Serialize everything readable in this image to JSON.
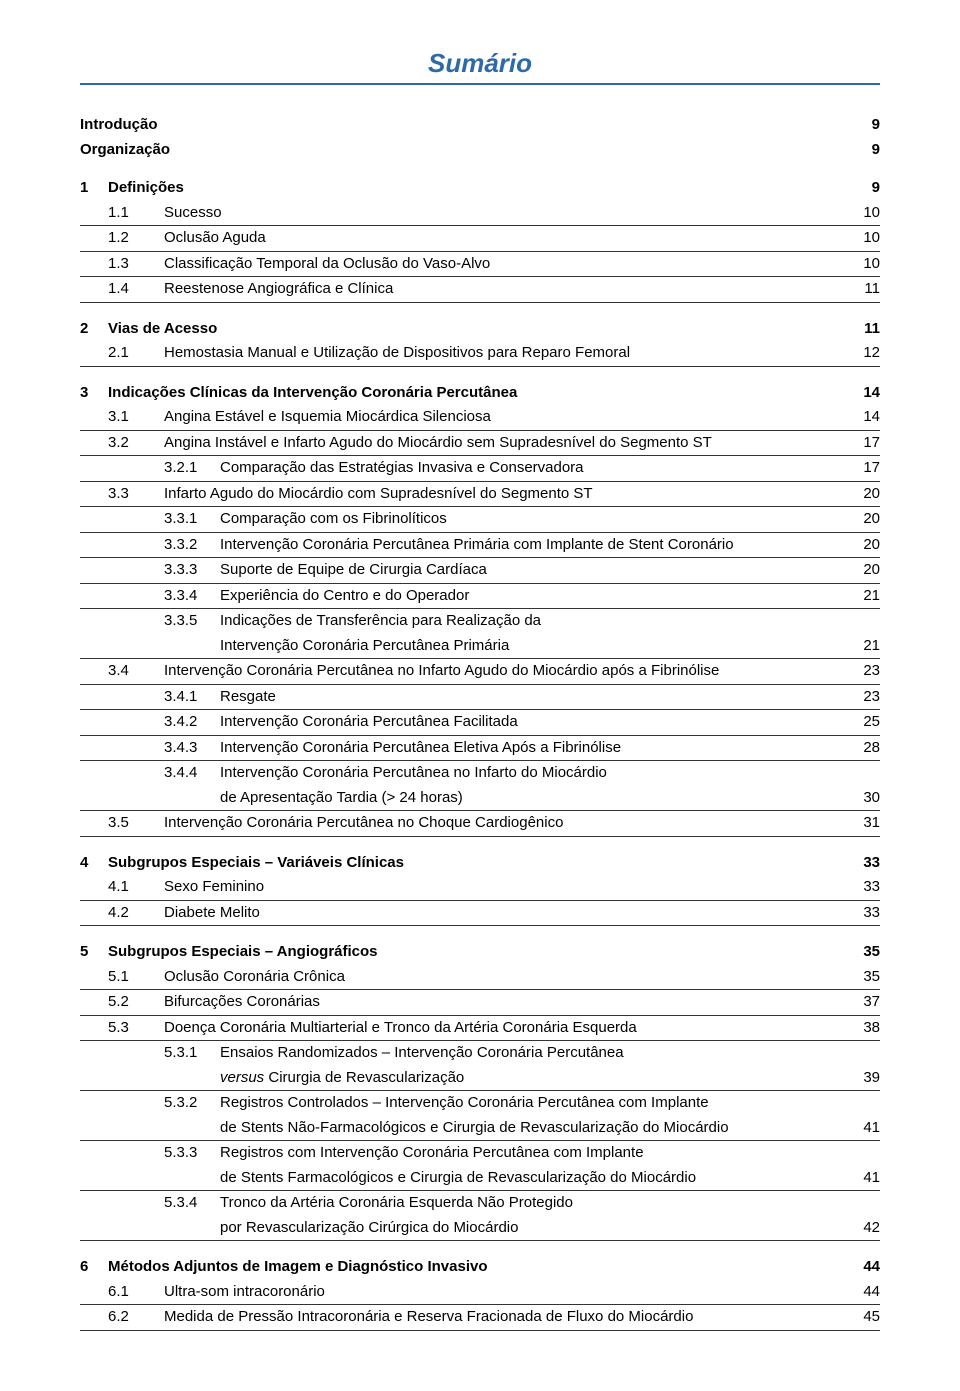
{
  "header": {
    "title": "Sumário"
  },
  "toc": {
    "introducao": {
      "label": "Introdução",
      "page": "9"
    },
    "organizacao": {
      "label": "Organização",
      "page": "9"
    },
    "ch1": {
      "num": "1",
      "label": "Definições",
      "page": "9",
      "s1": {
        "num": "1.1",
        "label": "Sucesso",
        "page": "10"
      },
      "s2": {
        "num": "1.2",
        "label": "Oclusão Aguda",
        "page": "10"
      },
      "s3": {
        "num": "1.3",
        "label": "Classificação Temporal da Oclusão do Vaso-Alvo",
        "page": "10"
      },
      "s4": {
        "num": "1.4",
        "label": "Reestenose Angiográfica e Clínica",
        "page": "11"
      }
    },
    "ch2": {
      "num": "2",
      "label": "Vias de Acesso",
      "page": "11",
      "s1": {
        "num": "2.1",
        "label": "Hemostasia Manual e Utilização de Dispositivos para Reparo Femoral",
        "page": "12"
      }
    },
    "ch3": {
      "num": "3",
      "label": "Indicações Clínicas da Intervenção Coronária Percutânea",
      "page": "14",
      "s1": {
        "num": "3.1",
        "label": "Angina Estável e Isquemia Miocárdica Silenciosa",
        "page": "14"
      },
      "s2": {
        "num": "3.2",
        "label": "Angina Instável e Infarto Agudo do Miocárdio sem Supradesnível do Segmento ST",
        "page": "17",
        "sub1": {
          "num": "3.2.1",
          "label": "Comparação das Estratégias Invasiva e Conservadora",
          "page": "17"
        }
      },
      "s3": {
        "num": "3.3",
        "label": "Infarto Agudo do Miocárdio com Supradesnível do Segmento ST",
        "page": "20",
        "sub1": {
          "num": "3.3.1",
          "label": "Comparação com os Fibrinolíticos",
          "page": "20"
        },
        "sub2": {
          "num": "3.3.2",
          "label": "Intervenção Coronária Percutânea Primária com Implante de Stent Coronário",
          "page": "20"
        },
        "sub3": {
          "num": "3.3.3",
          "label": "Suporte de Equipe de Cirurgia Cardíaca",
          "page": "20"
        },
        "sub4": {
          "num": "3.3.4",
          "label": "Experiência do Centro e do Operador",
          "page": "21"
        },
        "sub5": {
          "num": "3.3.5",
          "label1": "Indicações de Transferência para Realização da",
          "label2": "Intervenção Coronária Percutânea Primária",
          "page": "21"
        }
      },
      "s4": {
        "num": "3.4",
        "label": "Intervenção Coronária Percutânea no Infarto Agudo do Miocárdio após a Fibrinólise",
        "page": "23",
        "sub1": {
          "num": "3.4.1",
          "label": "Resgate",
          "page": "23"
        },
        "sub2": {
          "num": "3.4.2",
          "label": "Intervenção Coronária Percutânea Facilitada",
          "page": "25"
        },
        "sub3": {
          "num": "3.4.3",
          "label": "Intervenção Coronária Percutânea Eletiva Após a Fibrinólise",
          "page": "28"
        },
        "sub4": {
          "num": "3.4.4",
          "label1": "Intervenção Coronária Percutânea no Infarto do Miocárdio",
          "label2": "de Apresentação Tardia (> 24 horas)",
          "page": "30"
        }
      },
      "s5": {
        "num": "3.5",
        "label": "Intervenção Coronária Percutânea no Choque Cardiogênico",
        "page": "31"
      }
    },
    "ch4": {
      "num": "4",
      "label": "Subgrupos Especiais – Variáveis Clínicas",
      "page": "33",
      "s1": {
        "num": "4.1",
        "label": "Sexo Feminino",
        "page": "33"
      },
      "s2": {
        "num": "4.2",
        "label": "Diabete Melito",
        "page": "33"
      }
    },
    "ch5": {
      "num": "5",
      "label": "Subgrupos Especiais – Angiográficos",
      "page": "35",
      "s1": {
        "num": "5.1",
        "label": "Oclusão Coronária Crônica",
        "page": "35"
      },
      "s2": {
        "num": "5.2",
        "label": "Bifurcações Coronárias",
        "page": "37"
      },
      "s3": {
        "num": "5.3",
        "label": "Doença Coronária Multiarterial e Tronco da Artéria Coronária Esquerda",
        "page": "38",
        "sub1": {
          "num": "5.3.1",
          "label1": "Ensaios Randomizados – Intervenção Coronária Percutânea",
          "label2a": "versus",
          "label2b": " Cirurgia de Revascularização",
          "page": "39"
        },
        "sub2": {
          "num": "5.3.2",
          "label1": "Registros Controlados – Intervenção Coronária Percutânea com Implante",
          "label2": "de Stents Não-Farmacológicos e Cirurgia de Revascularização do Miocárdio",
          "page": "41"
        },
        "sub3": {
          "num": "5.3.3",
          "label1": "Registros com Intervenção Coronária Percutânea com Implante",
          "label2": "de Stents Farmacológicos e Cirurgia de Revascularização do Miocárdio",
          "page": "41"
        },
        "sub4": {
          "num": "5.3.4",
          "label1": "Tronco da Artéria Coronária Esquerda Não Protegido",
          "label2": "por Revascularização Cirúrgica do Miocárdio",
          "page": "42"
        }
      }
    },
    "ch6": {
      "num": "6",
      "label": "Métodos Adjuntos de Imagem e Diagnóstico Invasivo",
      "page": "44",
      "s1": {
        "num": "6.1",
        "label": "Ultra-som intracoronário",
        "page": "44"
      },
      "s2": {
        "num": "6.2",
        "label": "Medida de Pressão Intracoronária e Reserva Fracionada de Fluxo do Miocárdio",
        "page": "45"
      }
    }
  }
}
